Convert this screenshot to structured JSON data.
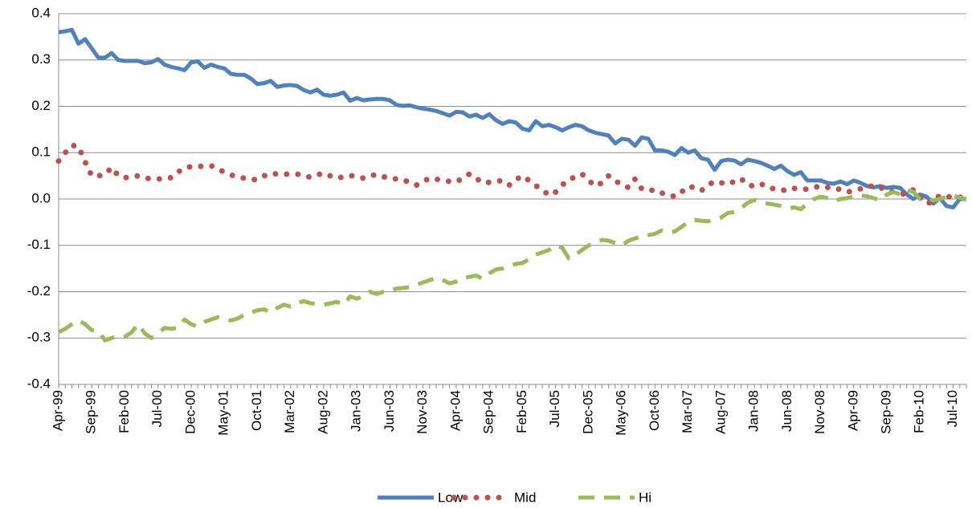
{
  "chart_data": {
    "type": "line",
    "categories": [
      "Apr-99",
      null,
      null,
      null,
      null,
      "Sep-99",
      null,
      null,
      null,
      null,
      "Feb-00",
      null,
      null,
      null,
      null,
      "Jul-00",
      null,
      null,
      null,
      null,
      "Dec-00",
      null,
      null,
      null,
      null,
      "May-01",
      null,
      null,
      null,
      null,
      "Oct-01",
      null,
      null,
      null,
      null,
      "Mar-02",
      null,
      null,
      null,
      null,
      "Aug-02",
      null,
      null,
      null,
      null,
      "Jan-03",
      null,
      null,
      null,
      null,
      "Jun-03",
      null,
      null,
      null,
      null,
      "Nov-03",
      null,
      null,
      null,
      null,
      "Apr-04",
      null,
      null,
      null,
      null,
      "Sep-04",
      null,
      null,
      null,
      null,
      "Feb-05",
      null,
      null,
      null,
      null,
      "Jul-05",
      null,
      null,
      null,
      null,
      "Dec-05",
      null,
      null,
      null,
      null,
      "May-06",
      null,
      null,
      null,
      null,
      "Oct-06",
      null,
      null,
      null,
      null,
      "Mar-07",
      null,
      null,
      null,
      null,
      "Aug-07",
      null,
      null,
      null,
      null,
      "Jan-08",
      null,
      null,
      null,
      null,
      "Jun-08",
      null,
      null,
      null,
      null,
      "Nov-08",
      null,
      null,
      null,
      null,
      "Apr-09",
      null,
      null,
      null,
      null,
      "Sep-09",
      null,
      null,
      null,
      null,
      "Feb-10",
      null,
      null,
      null,
      null,
      "Jul-10",
      null,
      null
    ],
    "series": [
      {
        "name": "Low",
        "color": "#4f81bd",
        "style": "solid",
        "values": [
          0.36,
          0.362,
          0.365,
          0.335,
          0.345,
          0.325,
          0.305,
          0.305,
          0.315,
          0.3,
          0.298,
          0.298,
          0.298,
          0.293,
          0.295,
          0.302,
          0.29,
          0.285,
          0.282,
          0.278,
          0.295,
          0.297,
          0.283,
          0.29,
          0.285,
          0.282,
          0.27,
          0.268,
          0.268,
          0.26,
          0.248,
          0.25,
          0.255,
          0.242,
          0.245,
          0.246,
          0.244,
          0.235,
          0.23,
          0.236,
          0.225,
          0.223,
          0.225,
          0.23,
          0.212,
          0.218,
          0.213,
          0.215,
          0.216,
          0.216,
          0.213,
          0.203,
          0.201,
          0.202,
          0.198,
          0.195,
          0.193,
          0.19,
          0.185,
          0.18,
          0.188,
          0.187,
          0.178,
          0.182,
          0.175,
          0.183,
          0.17,
          0.162,
          0.168,
          0.165,
          0.152,
          0.148,
          0.168,
          0.157,
          0.16,
          0.155,
          0.148,
          0.155,
          0.16,
          0.157,
          0.148,
          0.143,
          0.14,
          0.137,
          0.12,
          0.13,
          0.128,
          0.115,
          0.133,
          0.13,
          0.105,
          0.105,
          0.102,
          0.095,
          0.11,
          0.1,
          0.105,
          0.088,
          0.085,
          0.063,
          0.082,
          0.085,
          0.083,
          0.075,
          0.085,
          0.082,
          0.078,
          0.072,
          0.065,
          0.072,
          0.06,
          0.052,
          0.058,
          0.04,
          0.04,
          0.04,
          0.035,
          0.033,
          0.038,
          0.032,
          0.04,
          0.035,
          0.028,
          0.025,
          0.028,
          0.024,
          0.026,
          0.024,
          0.01,
          0.0,
          0.01,
          0.005,
          -0.01,
          0.002,
          -0.015,
          -0.018,
          0.0,
          0.0
        ]
      },
      {
        "name": "Mid",
        "color": "#c0504d",
        "style": "dotted",
        "values": [
          0.082,
          0.1,
          0.116,
          0.113,
          0.08,
          0.05,
          0.05,
          0.053,
          0.068,
          0.05,
          0.046,
          0.048,
          0.05,
          0.046,
          0.043,
          0.043,
          0.045,
          0.046,
          0.058,
          0.067,
          0.07,
          0.071,
          0.07,
          0.072,
          0.065,
          0.058,
          0.052,
          0.048,
          0.045,
          0.042,
          0.042,
          0.05,
          0.055,
          0.054,
          0.054,
          0.053,
          0.054,
          0.05,
          0.047,
          0.052,
          0.056,
          0.05,
          0.045,
          0.048,
          0.051,
          0.048,
          0.045,
          0.05,
          0.053,
          0.048,
          0.046,
          0.043,
          0.042,
          0.035,
          0.03,
          0.038,
          0.045,
          0.043,
          0.04,
          0.038,
          0.037,
          0.045,
          0.054,
          0.045,
          0.035,
          0.036,
          0.038,
          0.04,
          0.03,
          0.042,
          0.05,
          0.04,
          0.029,
          0.02,
          0.008,
          0.015,
          0.03,
          0.042,
          0.048,
          0.054,
          0.04,
          0.028,
          0.035,
          0.05,
          0.04,
          0.03,
          0.025,
          0.043,
          0.022,
          0.018,
          0.02,
          0.013,
          0.01,
          0.005,
          0.015,
          0.027,
          0.025,
          0.018,
          0.03,
          0.038,
          0.035,
          0.032,
          0.038,
          0.044,
          0.03,
          0.028,
          0.033,
          0.025,
          0.022,
          0.02,
          0.018,
          0.023,
          0.022,
          0.021,
          0.025,
          0.028,
          0.025,
          0.025,
          0.02,
          0.015,
          0.018,
          0.022,
          0.024,
          0.03,
          0.025,
          0.018,
          0.015,
          0.012,
          0.01,
          0.02,
          0.005,
          -0.01,
          -0.005,
          0.008,
          0.006,
          0.003,
          0.004,
          0.002
        ]
      },
      {
        "name": "Hi",
        "color": "#9bbb59",
        "style": "dashed",
        "values": [
          -0.287,
          -0.28,
          -0.27,
          -0.262,
          -0.27,
          -0.283,
          -0.285,
          -0.305,
          -0.3,
          -0.295,
          -0.297,
          -0.288,
          -0.27,
          -0.29,
          -0.3,
          -0.29,
          -0.278,
          -0.28,
          -0.278,
          -0.26,
          -0.27,
          -0.275,
          -0.265,
          -0.26,
          -0.255,
          -0.26,
          -0.262,
          -0.258,
          -0.25,
          -0.245,
          -0.24,
          -0.238,
          -0.245,
          -0.235,
          -0.228,
          -0.232,
          -0.225,
          -0.22,
          -0.225,
          -0.226,
          -0.228,
          -0.225,
          -0.222,
          -0.228,
          -0.21,
          -0.215,
          -0.21,
          -0.2,
          -0.205,
          -0.2,
          -0.198,
          -0.193,
          -0.192,
          -0.19,
          -0.185,
          -0.18,
          -0.175,
          -0.17,
          -0.175,
          -0.182,
          -0.178,
          -0.17,
          -0.168,
          -0.165,
          -0.172,
          -0.16,
          -0.152,
          -0.15,
          -0.145,
          -0.14,
          -0.138,
          -0.13,
          -0.12,
          -0.115,
          -0.11,
          -0.1,
          -0.105,
          -0.128,
          -0.12,
          -0.11,
          -0.1,
          -0.095,
          -0.088,
          -0.09,
          -0.095,
          -0.1,
          -0.09,
          -0.085,
          -0.08,
          -0.078,
          -0.075,
          -0.068,
          -0.072,
          -0.07,
          -0.06,
          -0.05,
          -0.045,
          -0.047,
          -0.048,
          -0.045,
          -0.04,
          -0.03,
          -0.028,
          -0.02,
          -0.008,
          -0.002,
          -0.005,
          -0.01,
          -0.012,
          -0.015,
          -0.02,
          -0.018,
          -0.022,
          -0.01,
          0.0,
          0.005,
          0.002,
          -0.005,
          0.0,
          0.002,
          0.005,
          0.008,
          0.006,
          0.002,
          -0.003,
          0.01,
          0.015,
          0.01,
          0.02,
          0.015,
          0.0,
          0.002,
          -0.003,
          0.0,
          0.005,
          0.008,
          0.003,
          0.0
        ]
      }
    ],
    "ylim": [
      -0.4,
      0.4
    ],
    "yticks": [
      -0.4,
      -0.3,
      -0.2,
      -0.1,
      {
        "value": 0,
        "label": "0.0"
      },
      0.1,
      0.2,
      0.3,
      0.4
    ],
    "grid": true,
    "legend": "bottom"
  }
}
